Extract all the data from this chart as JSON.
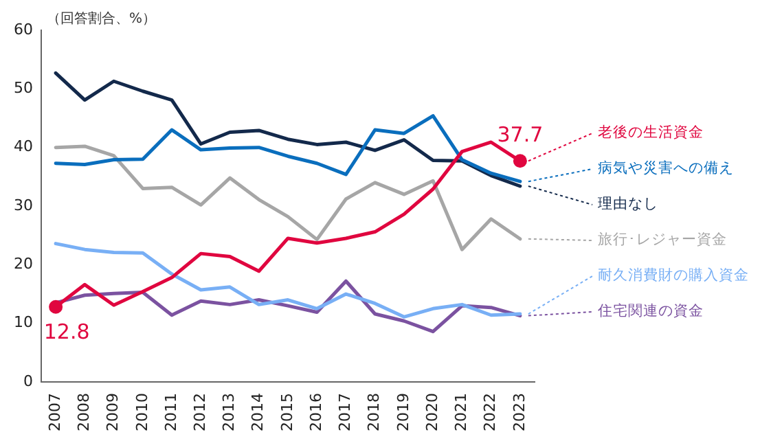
{
  "chart_data": {
    "type": "line",
    "ylabel": "（回答割合、%）",
    "categories": [
      "2007",
      "2008",
      "2009",
      "2010",
      "2011",
      "2012",
      "2013",
      "2014",
      "2015",
      "2016",
      "2017",
      "2018",
      "2019",
      "2020",
      "2021",
      "2022",
      "2023"
    ],
    "ylim": [
      0,
      60
    ],
    "yticks": [
      0,
      10,
      20,
      30,
      40,
      50,
      60
    ],
    "grid": false,
    "legend": "right",
    "marker": "none",
    "line_style": "solid",
    "series": [
      {
        "name": "老後の生活資金",
        "color": "#e0063f",
        "values": [
          12.8,
          16.6,
          13.1,
          15.4,
          17.8,
          21.9,
          21.4,
          18.9,
          24.5,
          23.7,
          24.5,
          25.6,
          28.6,
          32.9,
          39.3,
          40.9,
          37.7
        ],
        "value_labels": [
          "12.8",
          null,
          null,
          null,
          null,
          null,
          null,
          null,
          null,
          null,
          null,
          null,
          null,
          null,
          null,
          null,
          "37.7"
        ]
      },
      {
        "name": "病気や災害への備え",
        "color": "#0a6ebd",
        "values": [
          37.3,
          37.1,
          37.9,
          38.0,
          43.0,
          39.6,
          39.9,
          40.0,
          38.5,
          37.3,
          35.4,
          43.0,
          42.4,
          45.4,
          37.9,
          35.6,
          34.2
        ]
      },
      {
        "name": "理由なし",
        "color": "#13294b",
        "values": [
          52.7,
          48.1,
          51.3,
          49.6,
          48.1,
          40.6,
          42.6,
          42.9,
          41.4,
          40.5,
          40.9,
          39.5,
          41.3,
          37.8,
          37.7,
          35.2,
          33.4
        ]
      },
      {
        "name": "旅行･レジャー資金",
        "color": "#a6a6a6",
        "values": [
          40.0,
          40.2,
          38.6,
          33.0,
          33.2,
          30.2,
          34.8,
          31.1,
          28.2,
          24.3,
          31.2,
          34.0,
          32.0,
          34.3,
          22.6,
          27.8,
          24.4
        ]
      },
      {
        "name": "耐久消費財の購入資金",
        "color": "#78aff5",
        "values": [
          23.6,
          22.6,
          22.1,
          22.0,
          18.4,
          15.7,
          16.2,
          13.2,
          14.0,
          12.5,
          15.0,
          13.4,
          11.1,
          12.5,
          13.2,
          11.4,
          11.6
        ]
      },
      {
        "name": "住宅関連の資金",
        "color": "#7b52a0",
        "values": [
          13.5,
          14.8,
          15.1,
          15.3,
          11.4,
          13.8,
          13.2,
          14.0,
          13.0,
          11.9,
          17.2,
          11.6,
          10.4,
          8.6,
          13.0,
          12.7,
          11.3
        ]
      }
    ]
  }
}
